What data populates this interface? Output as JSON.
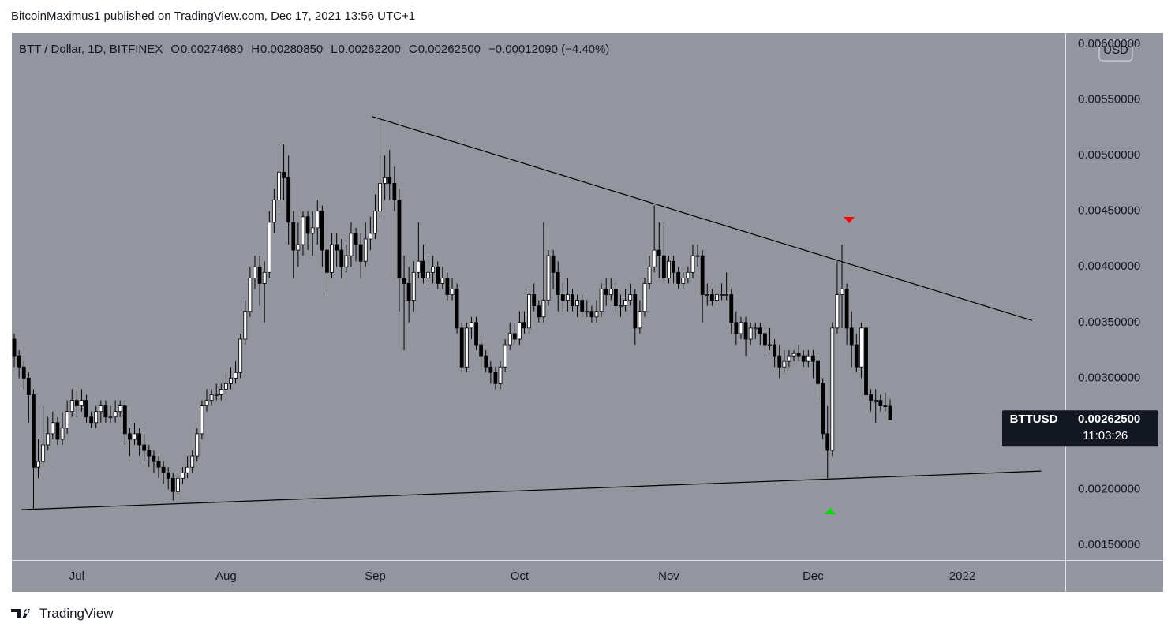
{
  "header": {
    "author_line": "BitcoinMaximus1 published on TradingView.com, Dec 17, 2021 13:56 UTC+1"
  },
  "chart_data": {
    "type": "candlestick",
    "symbol_line": "BTT / Dollar, 1D, BITFINEX",
    "ohlc": [
      {
        "key": "O",
        "value": "0.00274680"
      },
      {
        "key": "H",
        "value": "0.00280850"
      },
      {
        "key": "L",
        "value": "0.00262200"
      },
      {
        "key": "C",
        "value": "0.00262500"
      }
    ],
    "change": "−0.00012090 (−4.40%)",
    "currency": "USD",
    "price_tag": {
      "symbol": "BTTUSD",
      "price": "0.00262500",
      "countdown": "11:03:26"
    },
    "up_color": "#ffffff",
    "down_color": "#000000",
    "background": "#94969f",
    "xlim": [
      -0.5,
      218.4
    ],
    "xticks": [
      {
        "value": 13,
        "label": "Jul"
      },
      {
        "value": 44,
        "label": "Aug"
      },
      {
        "value": 75,
        "label": "Sep"
      },
      {
        "value": 105,
        "label": "Oct"
      },
      {
        "value": 136,
        "label": "Nov"
      },
      {
        "value": 166,
        "label": "Dec"
      },
      {
        "value": 197,
        "label": "2022"
      }
    ],
    "ylim": [
      0.001365,
      0.0061
    ],
    "yticks": [
      {
        "value": 0.0015,
        "label": "0.00150000"
      },
      {
        "value": 0.002,
        "label": "0.00200000"
      },
      {
        "value": 0.0025,
        "label": "0.00250000"
      },
      {
        "value": 0.003,
        "label": "0.00300000"
      },
      {
        "value": 0.0035,
        "label": "0.00350000"
      },
      {
        "value": 0.004,
        "label": "0.00400000"
      },
      {
        "value": 0.0045,
        "label": "0.00450000"
      },
      {
        "value": 0.005,
        "label": "0.00500000"
      },
      {
        "value": 0.0055,
        "label": "0.00550000"
      },
      {
        "value": 0.006,
        "label": "0.00600000"
      }
    ],
    "open": [
      0.00335,
      0.0032,
      0.0031,
      0.003,
      0.00285,
      0.0022,
      0.00225,
      0.0024,
      0.0025,
      0.0026,
      0.00245,
      0.00255,
      0.0027,
      0.0028,
      0.00275,
      0.0028,
      0.00265,
      0.0026,
      0.0027,
      0.00275,
      0.00265,
      0.00265,
      0.0027,
      0.00275,
      0.0025,
      0.00245,
      0.0025,
      0.0024,
      0.00235,
      0.0023,
      0.00225,
      0.0022,
      0.00215,
      0.0021,
      0.00198,
      0.0021,
      0.00215,
      0.0022,
      0.0023,
      0.0025,
      0.00275,
      0.0028,
      0.00285,
      0.00285,
      0.0029,
      0.00295,
      0.003,
      0.00305,
      0.00335,
      0.0036,
      0.0039,
      0.004,
      0.00385,
      0.00395,
      0.0044,
      0.0046,
      0.00485,
      0.0048,
      0.0044,
      0.00415,
      0.0042,
      0.00445,
      0.0043,
      0.00435,
      0.0045,
      0.00415,
      0.00395,
      0.0042,
      0.00415,
      0.004,
      0.0041,
      0.0043,
      0.0042,
      0.00405,
      0.00425,
      0.0043,
      0.0045,
      0.00475,
      0.0048,
      0.00475,
      0.0046,
      0.0039,
      0.00385,
      0.0037,
      0.00395,
      0.00405,
      0.0039,
      0.00395,
      0.004,
      0.00385,
      0.0039,
      0.00375,
      0.0038,
      0.00345,
      0.0031,
      0.00345,
      0.0035,
      0.0033,
      0.0032,
      0.0031,
      0.00305,
      0.00295,
      0.0031,
      0.0033,
      0.0034,
      0.00335,
      0.0035,
      0.00345,
      0.00375,
      0.00365,
      0.00355,
      0.0037,
      0.0041,
      0.00395,
      0.00375,
      0.0037,
      0.00375,
      0.00365,
      0.0037,
      0.0036,
      0.0036,
      0.00355,
      0.0036,
      0.0038,
      0.00375,
      0.0038,
      0.00365,
      0.00365,
      0.0037,
      0.00375,
      0.00345,
      0.0036,
      0.00385,
      0.004,
      0.00415,
      0.0041,
      0.0039,
      0.00405,
      0.00395,
      0.00385,
      0.0039,
      0.00395,
      0.0041,
      0.0041,
      0.00375,
      0.00375,
      0.0037,
      0.00375,
      0.00375,
      0.00375,
      0.0035,
      0.0034,
      0.0035,
      0.00335,
      0.00345,
      0.00345,
      0.0034,
      0.0033,
      0.0033,
      0.0032,
      0.0031,
      0.00315,
      0.0032,
      0.00322,
      0.0032,
      0.00315,
      0.0032,
      0.00315,
      0.00295,
      0.0025,
      0.00235,
      0.00345,
      0.00375,
      0.0038,
      0.00345,
      0.0033,
      0.0031,
      0.00345,
      0.00285,
      0.0028,
      0.0028,
      0.00275,
      0.0027468
    ],
    "high": [
      0.0034,
      0.00325,
      0.00315,
      0.00305,
      0.0029,
      0.00245,
      0.00275,
      0.00265,
      0.0027,
      0.00265,
      0.0027,
      0.0028,
      0.0029,
      0.0029,
      0.0029,
      0.00285,
      0.0027,
      0.00275,
      0.0028,
      0.0028,
      0.00275,
      0.0028,
      0.0028,
      0.0028,
      0.00255,
      0.0026,
      0.00255,
      0.0025,
      0.0024,
      0.00235,
      0.0023,
      0.00225,
      0.0022,
      0.00215,
      0.00215,
      0.0022,
      0.0023,
      0.00235,
      0.00255,
      0.0028,
      0.0029,
      0.0029,
      0.00295,
      0.00295,
      0.00305,
      0.0031,
      0.00315,
      0.0034,
      0.0037,
      0.004,
      0.0041,
      0.0041,
      0.00405,
      0.0045,
      0.0047,
      0.0051,
      0.0051,
      0.005,
      0.0045,
      0.0044,
      0.0045,
      0.0045,
      0.0045,
      0.0046,
      0.00455,
      0.0043,
      0.0043,
      0.0043,
      0.00425,
      0.0042,
      0.0044,
      0.00435,
      0.0043,
      0.0044,
      0.00445,
      0.00465,
      0.00535,
      0.005,
      0.00505,
      0.0049,
      0.0047,
      0.0041,
      0.004,
      0.00405,
      0.0044,
      0.0042,
      0.0041,
      0.0041,
      0.00405,
      0.004,
      0.00395,
      0.0039,
      0.00385,
      0.0035,
      0.0035,
      0.00355,
      0.00355,
      0.00335,
      0.00325,
      0.00315,
      0.0031,
      0.00315,
      0.00335,
      0.0035,
      0.0035,
      0.0036,
      0.0036,
      0.0038,
      0.00385,
      0.0037,
      0.0044,
      0.00415,
      0.00415,
      0.00405,
      0.00385,
      0.0039,
      0.0038,
      0.00375,
      0.00375,
      0.0037,
      0.00365,
      0.0037,
      0.00385,
      0.0039,
      0.0039,
      0.00385,
      0.00375,
      0.0038,
      0.00385,
      0.0038,
      0.0037,
      0.0039,
      0.0041,
      0.00455,
      0.0044,
      0.0044,
      0.0041,
      0.0041,
      0.004,
      0.00395,
      0.004,
      0.0042,
      0.0042,
      0.00415,
      0.00385,
      0.0038,
      0.0038,
      0.00385,
      0.00395,
      0.0038,
      0.0036,
      0.00355,
      0.00355,
      0.0035,
      0.0035,
      0.0035,
      0.00345,
      0.00345,
      0.00335,
      0.0033,
      0.00325,
      0.00325,
      0.00325,
      0.0033,
      0.00325,
      0.00325,
      0.00325,
      0.0032,
      0.003,
      0.00275,
      0.0035,
      0.00405,
      0.0042,
      0.00385,
      0.0036,
      0.0034,
      0.0035,
      0.0035,
      0.0029,
      0.0029,
      0.00285,
      0.00287,
      0.0028085
    ],
    "low": [
      0.0031,
      0.003,
      0.0029,
      0.0026,
      0.00182,
      0.0021,
      0.0022,
      0.00235,
      0.00245,
      0.0024,
      0.0024,
      0.0025,
      0.00265,
      0.00265,
      0.0027,
      0.0026,
      0.00255,
      0.00255,
      0.0026,
      0.0026,
      0.0026,
      0.0026,
      0.00265,
      0.0024,
      0.0023,
      0.0024,
      0.0023,
      0.00225,
      0.0022,
      0.00215,
      0.0021,
      0.00205,
      0.002,
      0.0019,
      0.00195,
      0.00205,
      0.0021,
      0.00215,
      0.00225,
      0.00245,
      0.0027,
      0.00275,
      0.0028,
      0.0028,
      0.00285,
      0.0029,
      0.00295,
      0.003,
      0.0033,
      0.00355,
      0.0038,
      0.00365,
      0.0035,
      0.0039,
      0.0043,
      0.0045,
      0.0046,
      0.0042,
      0.0039,
      0.004,
      0.0041,
      0.00415,
      0.0041,
      0.0042,
      0.004,
      0.00375,
      0.0039,
      0.004,
      0.0039,
      0.00395,
      0.004,
      0.00405,
      0.0039,
      0.004,
      0.00415,
      0.00425,
      0.00445,
      0.0046,
      0.0046,
      0.0045,
      0.0036,
      0.00325,
      0.0035,
      0.0036,
      0.0039,
      0.00385,
      0.0038,
      0.00385,
      0.0038,
      0.0038,
      0.0037,
      0.0037,
      0.0034,
      0.00305,
      0.00305,
      0.00335,
      0.00325,
      0.0031,
      0.00305,
      0.00295,
      0.0029,
      0.0029,
      0.00305,
      0.00325,
      0.0033,
      0.0033,
      0.0034,
      0.0034,
      0.0036,
      0.0035,
      0.0035,
      0.00365,
      0.0038,
      0.0036,
      0.0036,
      0.0036,
      0.0036,
      0.00355,
      0.00355,
      0.00355,
      0.0035,
      0.0035,
      0.00355,
      0.00365,
      0.0037,
      0.0036,
      0.00355,
      0.0036,
      0.00365,
      0.0033,
      0.0034,
      0.00355,
      0.0038,
      0.00395,
      0.0039,
      0.00385,
      0.00385,
      0.00385,
      0.0038,
      0.0038,
      0.00385,
      0.0039,
      0.004,
      0.0035,
      0.00365,
      0.00365,
      0.00365,
      0.0037,
      0.0037,
      0.0034,
      0.0033,
      0.00335,
      0.0032,
      0.0033,
      0.00335,
      0.0033,
      0.0032,
      0.00325,
      0.0031,
      0.003,
      0.00305,
      0.0031,
      0.00315,
      0.00315,
      0.0031,
      0.0031,
      0.003,
      0.0028,
      0.00245,
      0.0021,
      0.0023,
      0.0034,
      0.00345,
      0.0033,
      0.0031,
      0.00305,
      0.003,
      0.0028,
      0.0027,
      0.0026,
      0.0027,
      0.0027,
      0.002622
    ],
    "close": [
      0.0032,
      0.0031,
      0.003,
      0.00285,
      0.0022,
      0.00225,
      0.0024,
      0.0025,
      0.0026,
      0.00245,
      0.00255,
      0.0027,
      0.0028,
      0.00275,
      0.0028,
      0.00265,
      0.0026,
      0.0027,
      0.00275,
      0.00265,
      0.00265,
      0.0027,
      0.00275,
      0.0025,
      0.00245,
      0.0025,
      0.0024,
      0.00235,
      0.0023,
      0.00225,
      0.0022,
      0.00215,
      0.0021,
      0.00198,
      0.0021,
      0.00215,
      0.0022,
      0.0023,
      0.0025,
      0.00275,
      0.0028,
      0.00285,
      0.00285,
      0.0029,
      0.00295,
      0.003,
      0.00305,
      0.00335,
      0.0036,
      0.0039,
      0.004,
      0.00385,
      0.00395,
      0.0044,
      0.0046,
      0.00485,
      0.0048,
      0.0044,
      0.00415,
      0.0042,
      0.00445,
      0.0043,
      0.00435,
      0.0045,
      0.00415,
      0.00395,
      0.0042,
      0.00415,
      0.004,
      0.0041,
      0.0043,
      0.0042,
      0.00405,
      0.00425,
      0.0043,
      0.0045,
      0.00475,
      0.0048,
      0.00475,
      0.0046,
      0.0039,
      0.00385,
      0.0037,
      0.00395,
      0.00405,
      0.0039,
      0.00395,
      0.004,
      0.00385,
      0.0039,
      0.00375,
      0.0038,
      0.00345,
      0.0031,
      0.00345,
      0.0035,
      0.0033,
      0.0032,
      0.0031,
      0.00305,
      0.00295,
      0.0031,
      0.0033,
      0.0034,
      0.00335,
      0.0035,
      0.00345,
      0.00375,
      0.00365,
      0.00355,
      0.0037,
      0.0041,
      0.00395,
      0.00375,
      0.0037,
      0.00375,
      0.00365,
      0.0037,
      0.0036,
      0.0036,
      0.00355,
      0.0036,
      0.0038,
      0.00375,
      0.0038,
      0.00365,
      0.00365,
      0.0037,
      0.00375,
      0.00345,
      0.0036,
      0.00385,
      0.004,
      0.00415,
      0.0041,
      0.0039,
      0.00405,
      0.00395,
      0.00385,
      0.0039,
      0.00395,
      0.0041,
      0.0041,
      0.00375,
      0.00375,
      0.0037,
      0.00375,
      0.00375,
      0.00375,
      0.0035,
      0.0034,
      0.0035,
      0.00335,
      0.00345,
      0.00345,
      0.0034,
      0.0033,
      0.0033,
      0.0032,
      0.0031,
      0.00315,
      0.0032,
      0.00322,
      0.0032,
      0.00315,
      0.0032,
      0.00315,
      0.00295,
      0.0025,
      0.00235,
      0.00345,
      0.00375,
      0.0038,
      0.00345,
      0.0033,
      0.0031,
      0.00345,
      0.00285,
      0.0028,
      0.0028,
      0.00275,
      0.0027459,
      0.002625
    ],
    "trendlines": [
      {
        "x": [
          74.4,
          211.5
        ],
        "y": [
          0.00535,
          0.003518
        ]
      },
      {
        "x": [
          1.5,
          213.4
        ],
        "y": [
          0.001818,
          0.002165
        ]
      }
    ]
  },
  "footer": {
    "brand": "TradingView"
  }
}
